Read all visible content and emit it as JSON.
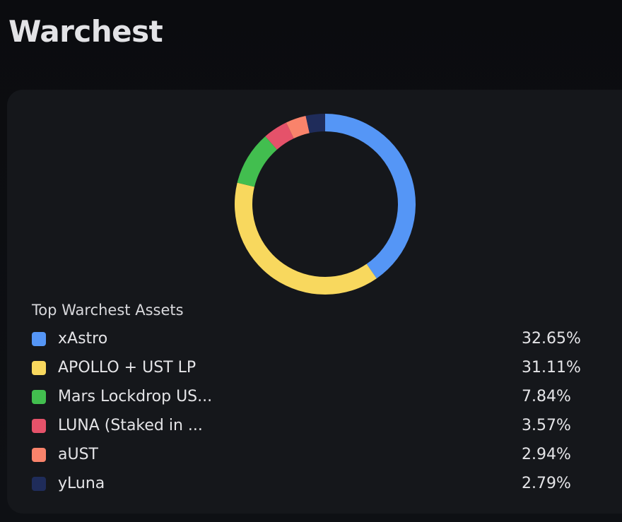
{
  "header": {
    "title": "Warchest"
  },
  "chart_data": {
    "type": "pie",
    "donut": true,
    "legend_title": "Top Warchest Assets",
    "categories": [
      "xAstro",
      "APOLLO + UST LP",
      "Mars Lockdrop US...",
      "LUNA (Staked in ...",
      "aUST",
      "yLuna"
    ],
    "values": [
      32.65,
      31.11,
      7.84,
      3.57,
      2.94,
      2.79
    ],
    "value_labels": [
      "32.65%",
      "31.11%",
      "7.84%",
      "3.57%",
      "2.94%",
      "2.79%"
    ],
    "colors": [
      "#5596f6",
      "#f8d85e",
      "#42be4f",
      "#e5526a",
      "#f9836b",
      "#1f2c5a"
    ]
  }
}
